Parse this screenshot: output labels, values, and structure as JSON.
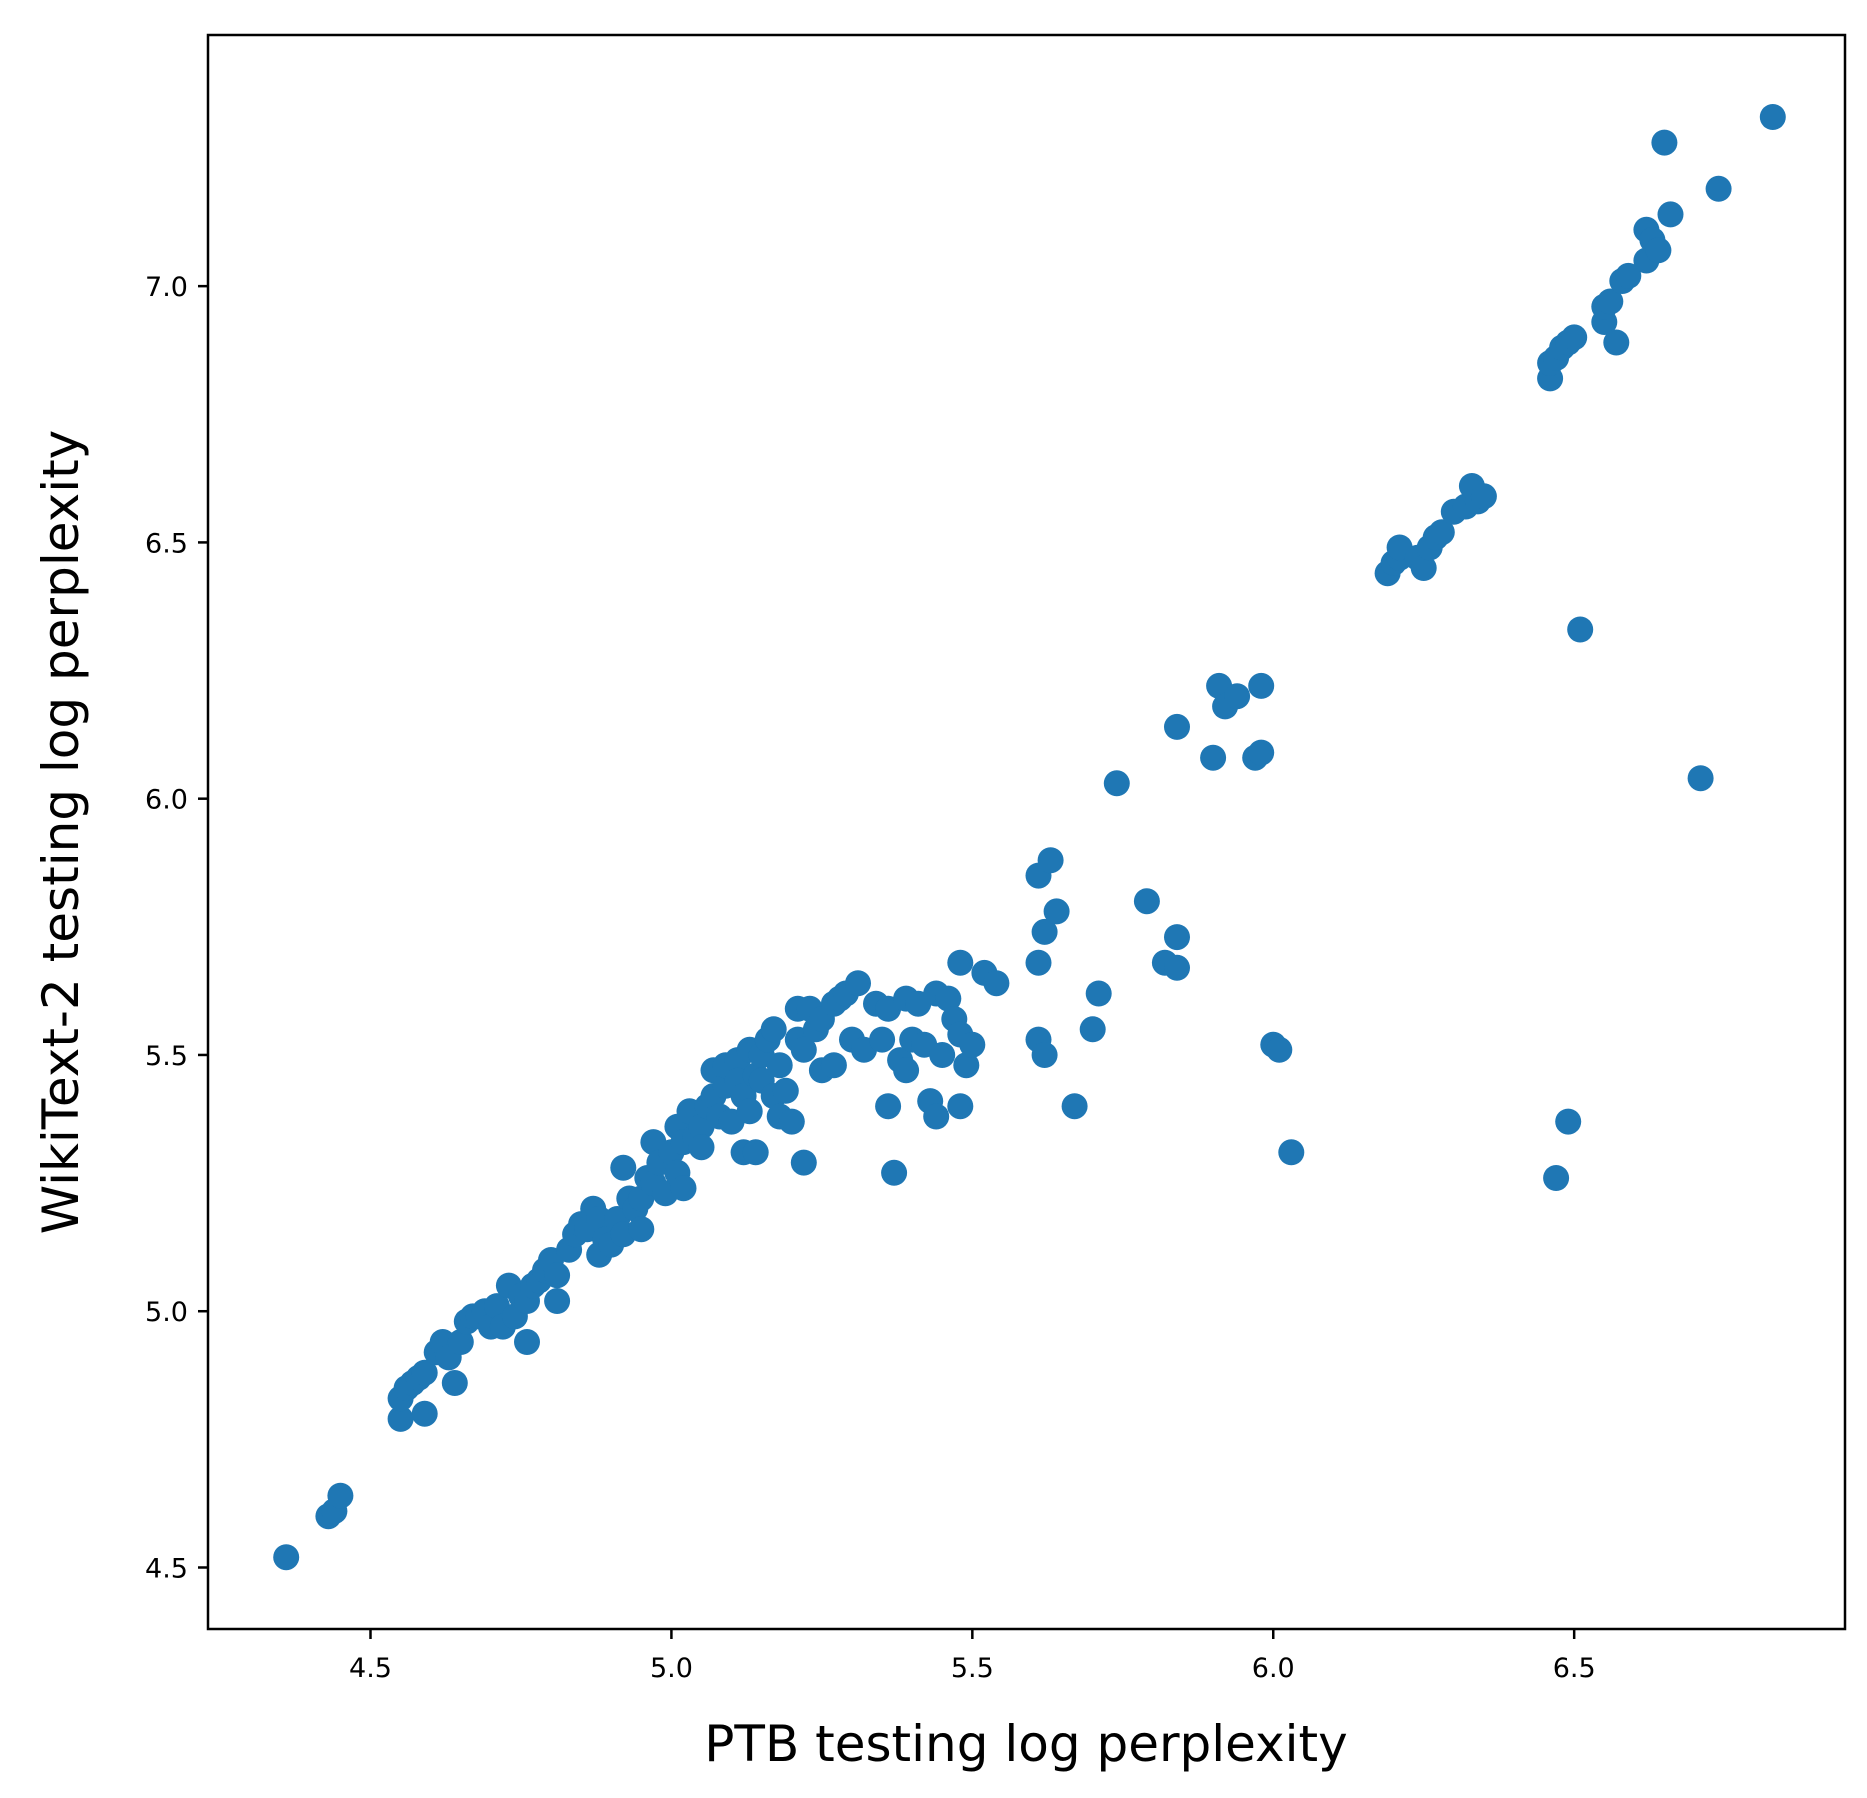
{
  "chart_data": {
    "type": "scatter",
    "xlabel": "PTB testing log perplexity",
    "ylabel": "WikiText-2 testing log perplexity",
    "xlim": [
      4.23,
      6.95
    ],
    "ylim": [
      4.38,
      7.49
    ],
    "xticks": [
      4.5,
      5.0,
      5.5,
      6.0,
      6.5
    ],
    "yticks": [
      4.5,
      5.0,
      5.5,
      6.0,
      6.5,
      7.0
    ],
    "xtick_labels": [
      "4.5",
      "5.0",
      "5.5",
      "6.0",
      "6.5"
    ],
    "ytick_labels": [
      "4.5",
      "5.0",
      "5.5",
      "6.0",
      "6.5",
      "7.0"
    ],
    "grid": false,
    "legend": null,
    "marker_color": "#1f77b4",
    "series": [
      {
        "points": [
          [
            4.36,
            4.52
          ],
          [
            4.43,
            4.6
          ],
          [
            4.44,
            4.61
          ],
          [
            4.45,
            4.64
          ],
          [
            4.55,
            4.79
          ],
          [
            4.55,
            4.83
          ],
          [
            4.56,
            4.85
          ],
          [
            4.57,
            4.86
          ],
          [
            4.58,
            4.87
          ],
          [
            4.59,
            4.8
          ],
          [
            4.59,
            4.88
          ],
          [
            4.61,
            4.92
          ],
          [
            4.62,
            4.94
          ],
          [
            4.63,
            4.91
          ],
          [
            4.64,
            4.86
          ],
          [
            4.65,
            4.94
          ],
          [
            4.66,
            4.98
          ],
          [
            4.67,
            4.99
          ],
          [
            4.68,
            4.99
          ],
          [
            4.69,
            5.0
          ],
          [
            4.7,
            4.97
          ],
          [
            4.71,
            5.01
          ],
          [
            4.72,
            4.97
          ],
          [
            4.73,
            5.05
          ],
          [
            4.74,
            4.99
          ],
          [
            4.75,
            5.03
          ],
          [
            4.76,
            5.02
          ],
          [
            4.76,
            4.94
          ],
          [
            4.77,
            5.05
          ],
          [
            4.78,
            5.06
          ],
          [
            4.79,
            5.08
          ],
          [
            4.8,
            5.1
          ],
          [
            4.81,
            5.07
          ],
          [
            4.81,
            5.02
          ],
          [
            4.83,
            5.12
          ],
          [
            4.84,
            5.15
          ],
          [
            4.85,
            5.17
          ],
          [
            4.86,
            5.16
          ],
          [
            4.87,
            5.2
          ],
          [
            4.88,
            5.18
          ],
          [
            4.88,
            5.11
          ],
          [
            4.89,
            5.14
          ],
          [
            4.9,
            5.13
          ],
          [
            4.91,
            5.18
          ],
          [
            4.92,
            5.15
          ],
          [
            4.92,
            5.28
          ],
          [
            4.93,
            5.22
          ],
          [
            4.94,
            5.2
          ],
          [
            4.95,
            5.22
          ],
          [
            4.95,
            5.16
          ],
          [
            4.96,
            5.26
          ],
          [
            4.97,
            5.25
          ],
          [
            4.97,
            5.33
          ],
          [
            4.98,
            5.29
          ],
          [
            4.99,
            5.23
          ],
          [
            5.0,
            5.31
          ],
          [
            5.01,
            5.27
          ],
          [
            5.01,
            5.36
          ],
          [
            5.02,
            5.33
          ],
          [
            5.02,
            5.24
          ],
          [
            5.03,
            5.39
          ],
          [
            5.04,
            5.34
          ],
          [
            5.05,
            5.36
          ],
          [
            5.05,
            5.32
          ],
          [
            5.06,
            5.4
          ],
          [
            5.07,
            5.47
          ],
          [
            5.07,
            5.42
          ],
          [
            5.08,
            5.38
          ],
          [
            5.09,
            5.44
          ],
          [
            5.09,
            5.48
          ],
          [
            5.1,
            5.37
          ],
          [
            5.11,
            5.49
          ],
          [
            5.11,
            5.45
          ],
          [
            5.12,
            5.42
          ],
          [
            5.12,
            5.31
          ],
          [
            5.13,
            5.51
          ],
          [
            5.13,
            5.39
          ],
          [
            5.14,
            5.46
          ],
          [
            5.14,
            5.31
          ],
          [
            5.15,
            5.5
          ],
          [
            5.15,
            5.45
          ],
          [
            5.16,
            5.53
          ],
          [
            5.17,
            5.55
          ],
          [
            5.17,
            5.42
          ],
          [
            5.18,
            5.48
          ],
          [
            5.18,
            5.38
          ],
          [
            5.19,
            5.43
          ],
          [
            5.2,
            5.37
          ],
          [
            5.21,
            5.59
          ],
          [
            5.21,
            5.53
          ],
          [
            5.22,
            5.51
          ],
          [
            5.22,
            5.29
          ],
          [
            5.23,
            5.59
          ],
          [
            5.24,
            5.55
          ],
          [
            5.25,
            5.57
          ],
          [
            5.25,
            5.47
          ],
          [
            5.27,
            5.6
          ],
          [
            5.27,
            5.48
          ],
          [
            5.28,
            5.61
          ],
          [
            5.29,
            5.62
          ],
          [
            5.3,
            5.53
          ],
          [
            5.31,
            5.64
          ],
          [
            5.32,
            5.51
          ],
          [
            5.34,
            5.6
          ],
          [
            5.35,
            5.53
          ],
          [
            5.36,
            5.59
          ],
          [
            5.36,
            5.4
          ],
          [
            5.37,
            5.27
          ],
          [
            5.38,
            5.49
          ],
          [
            5.39,
            5.61
          ],
          [
            5.39,
            5.47
          ],
          [
            5.4,
            5.53
          ],
          [
            5.41,
            5.6
          ],
          [
            5.42,
            5.52
          ],
          [
            5.43,
            5.41
          ],
          [
            5.44,
            5.38
          ],
          [
            5.44,
            5.62
          ],
          [
            5.45,
            5.5
          ],
          [
            5.46,
            5.61
          ],
          [
            5.47,
            5.57
          ],
          [
            5.48,
            5.68
          ],
          [
            5.48,
            5.54
          ],
          [
            5.48,
            5.4
          ],
          [
            5.49,
            5.48
          ],
          [
            5.5,
            5.52
          ],
          [
            5.52,
            5.66
          ],
          [
            5.54,
            5.64
          ],
          [
            5.61,
            5.85
          ],
          [
            5.61,
            5.68
          ],
          [
            5.61,
            5.53
          ],
          [
            5.62,
            5.74
          ],
          [
            5.62,
            5.5
          ],
          [
            5.63,
            5.88
          ],
          [
            5.64,
            5.78
          ],
          [
            5.67,
            5.4
          ],
          [
            5.7,
            5.55
          ],
          [
            5.71,
            5.62
          ],
          [
            5.74,
            6.03
          ],
          [
            5.79,
            5.8
          ],
          [
            5.82,
            5.68
          ],
          [
            5.84,
            5.73
          ],
          [
            5.84,
            5.67
          ],
          [
            5.84,
            6.14
          ],
          [
            5.9,
            6.08
          ],
          [
            5.91,
            6.22
          ],
          [
            5.92,
            6.18
          ],
          [
            5.94,
            6.2
          ],
          [
            5.97,
            6.08
          ],
          [
            5.98,
            6.22
          ],
          [
            5.98,
            6.09
          ],
          [
            6.0,
            5.52
          ],
          [
            6.01,
            5.51
          ],
          [
            6.03,
            5.31
          ],
          [
            6.19,
            6.44
          ],
          [
            6.2,
            6.46
          ],
          [
            6.21,
            6.47
          ],
          [
            6.21,
            6.49
          ],
          [
            6.24,
            6.47
          ],
          [
            6.25,
            6.45
          ],
          [
            6.26,
            6.49
          ],
          [
            6.27,
            6.51
          ],
          [
            6.28,
            6.52
          ],
          [
            6.3,
            6.56
          ],
          [
            6.32,
            6.57
          ],
          [
            6.33,
            6.61
          ],
          [
            6.34,
            6.58
          ],
          [
            6.35,
            6.59
          ],
          [
            6.46,
            6.82
          ],
          [
            6.46,
            6.85
          ],
          [
            6.47,
            6.86
          ],
          [
            6.47,
            5.26
          ],
          [
            6.48,
            6.88
          ],
          [
            6.49,
            6.89
          ],
          [
            6.49,
            5.37
          ],
          [
            6.5,
            6.9
          ],
          [
            6.51,
            6.33
          ],
          [
            6.55,
            6.93
          ],
          [
            6.55,
            6.96
          ],
          [
            6.56,
            6.97
          ],
          [
            6.57,
            6.89
          ],
          [
            6.58,
            7.01
          ],
          [
            6.59,
            7.02
          ],
          [
            6.62,
            7.05
          ],
          [
            6.62,
            7.11
          ],
          [
            6.63,
            7.09
          ],
          [
            6.64,
            7.07
          ],
          [
            6.65,
            7.28
          ],
          [
            6.66,
            7.14
          ],
          [
            6.71,
            6.04
          ],
          [
            6.74,
            7.19
          ],
          [
            6.83,
            7.33
          ]
        ]
      }
    ]
  }
}
